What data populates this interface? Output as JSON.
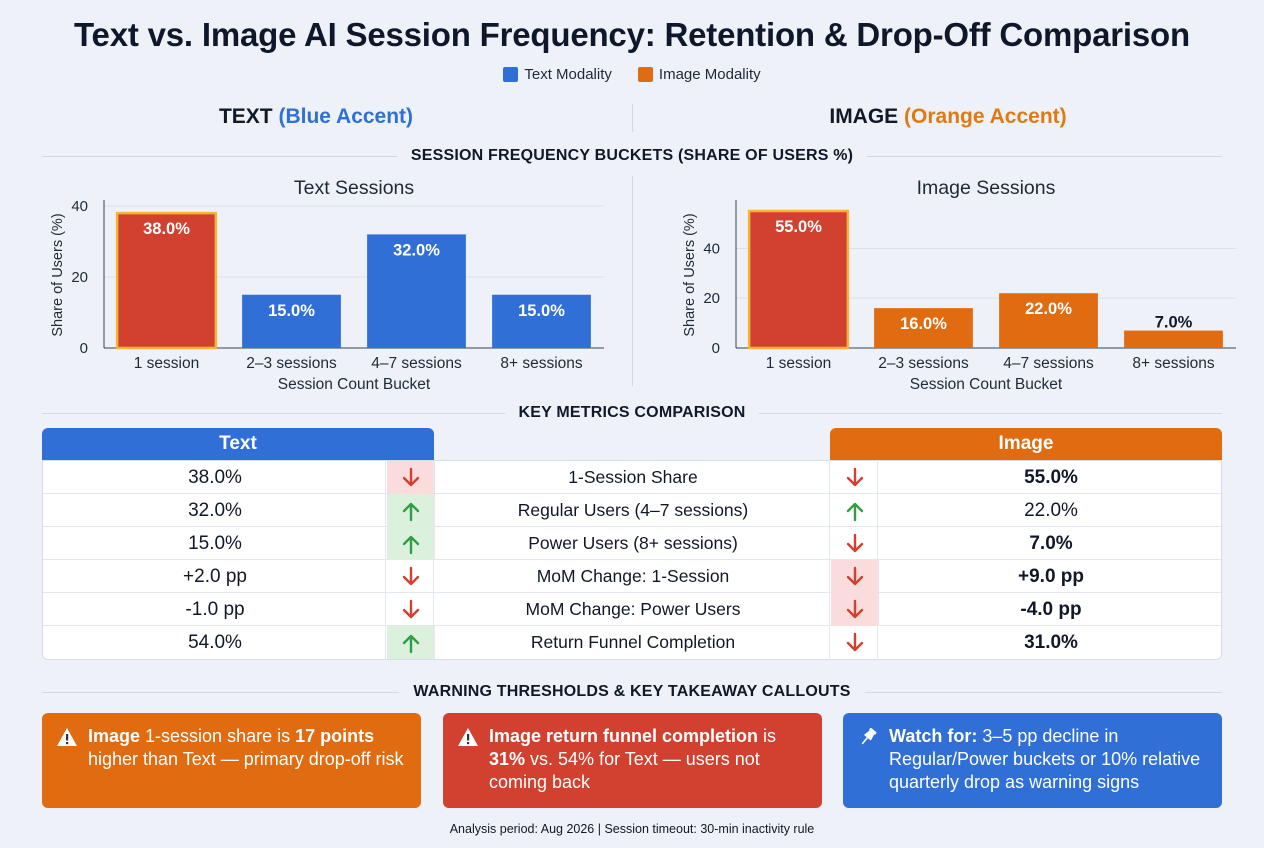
{
  "title": "Text vs. Image AI Session Frequency: Retention & Drop-Off Comparison",
  "legend": [
    {
      "label": "Text Modality",
      "color": "#2f6fd6"
    },
    {
      "label": "Image Modality",
      "color": "#e06b10"
    }
  ],
  "columns": {
    "text": {
      "name": "TEXT",
      "accent_label": "(Blue Accent)",
      "accent_color": "#2f6fd6"
    },
    "image": {
      "name": "IMAGE",
      "accent_label": "(Orange Accent)",
      "accent_color": "#e07a10"
    }
  },
  "section_titles": {
    "buckets": "SESSION FREQUENCY BUCKETS (SHARE OF USERS %)",
    "metrics": "KEY METRICS COMPARISON",
    "callouts": "WARNING THRESHOLDS & KEY TAKEAWAY CALLOUTS"
  },
  "chart_data": [
    {
      "type": "bar",
      "title": "Text Sessions",
      "xlabel": "Session Count Bucket",
      "ylabel": "Share of Users (%)",
      "categories": [
        "1 session",
        "2–3 sessions",
        "4–7 sessions",
        "8+ sessions"
      ],
      "values": [
        38.0,
        15.0,
        32.0,
        15.0
      ],
      "data_labels": [
        "38.0%",
        "15.0%",
        "32.0%",
        "15.0%"
      ],
      "highlight_index": 0,
      "bar_color": "#2f6fd6",
      "highlight_color": "#d2402f",
      "ylim": [
        0,
        40
      ],
      "yticks": [
        0,
        20,
        40
      ],
      "grid": true
    },
    {
      "type": "bar",
      "title": "Image Sessions",
      "xlabel": "Session Count Bucket",
      "ylabel": "Share of Users (%)",
      "categories": [
        "1 session",
        "2–3 sessions",
        "4–7 sessions",
        "8+ sessions"
      ],
      "values": [
        55.0,
        16.0,
        22.0,
        7.0
      ],
      "data_labels": [
        "55.0%",
        "16.0%",
        "22.0%",
        "7.0%"
      ],
      "highlight_index": 0,
      "bar_color": "#e06b10",
      "highlight_color": "#d2402f",
      "ylim": [
        0,
        57
      ],
      "yticks": [
        0,
        20,
        40
      ],
      "grid": true
    }
  ],
  "metrics_table": {
    "text_header": "Text",
    "image_header": "Image",
    "rows": [
      {
        "text": "38.0%",
        "text_dir": "down",
        "text_bg": "red",
        "metric": "1-Session Share",
        "image_dir": "down",
        "image_bg": "none",
        "image": "55.0%",
        "image_bold": true
      },
      {
        "text": "32.0%",
        "text_dir": "up",
        "text_bg": "green",
        "metric": "Regular Users (4–7 sessions)",
        "image_dir": "up",
        "image_bg": "none",
        "image": "22.0%",
        "image_bold": false
      },
      {
        "text": "15.0%",
        "text_dir": "up",
        "text_bg": "green",
        "metric": "Power Users (8+ sessions)",
        "image_dir": "down",
        "image_bg": "none",
        "image": "7.0%",
        "image_bold": true
      },
      {
        "text": "+2.0 pp",
        "text_dir": "down",
        "text_bg": "none",
        "metric": "MoM Change: 1-Session",
        "image_dir": "down",
        "image_bg": "red",
        "image": "+9.0 pp",
        "image_bold": true
      },
      {
        "text": "-1.0 pp",
        "text_dir": "down",
        "text_bg": "none",
        "metric": "MoM Change: Power Users",
        "image_dir": "down",
        "image_bg": "red",
        "image": "-4.0 pp",
        "image_bold": true
      },
      {
        "text": "54.0%",
        "text_dir": "up",
        "text_bg": "green",
        "metric": "Return Funnel Completion",
        "image_dir": "down",
        "image_bg": "none",
        "image": "31.0%",
        "image_bold": true
      }
    ]
  },
  "callouts": [
    {
      "icon": "warning-icon",
      "color": "#e06b10",
      "parts": [
        {
          "t": "Image",
          "b": true
        },
        {
          "t": " 1-session share is ",
          "b": false
        },
        {
          "t": "17 points",
          "b": true
        },
        {
          "t": " higher than Text — primary drop-off risk",
          "b": false
        }
      ]
    },
    {
      "icon": "warning-icon",
      "color": "#d2402f",
      "parts": [
        {
          "t": "Image return funnel completion",
          "b": true
        },
        {
          "t": " is ",
          "b": false
        },
        {
          "t": "31%",
          "b": true
        },
        {
          "t": " vs. 54% for Text — users not coming back",
          "b": false
        }
      ]
    },
    {
      "icon": "pin-icon",
      "color": "#2f6fd6",
      "parts": [
        {
          "t": "Watch for:",
          "b": true
        },
        {
          "t": " 3–5 pp decline in Regular/Power buckets or 10% relative quarterly drop as warning signs",
          "b": false
        }
      ]
    }
  ],
  "footer": "Analysis period: Aug 2026 | Session timeout: 30-min inactivity rule"
}
